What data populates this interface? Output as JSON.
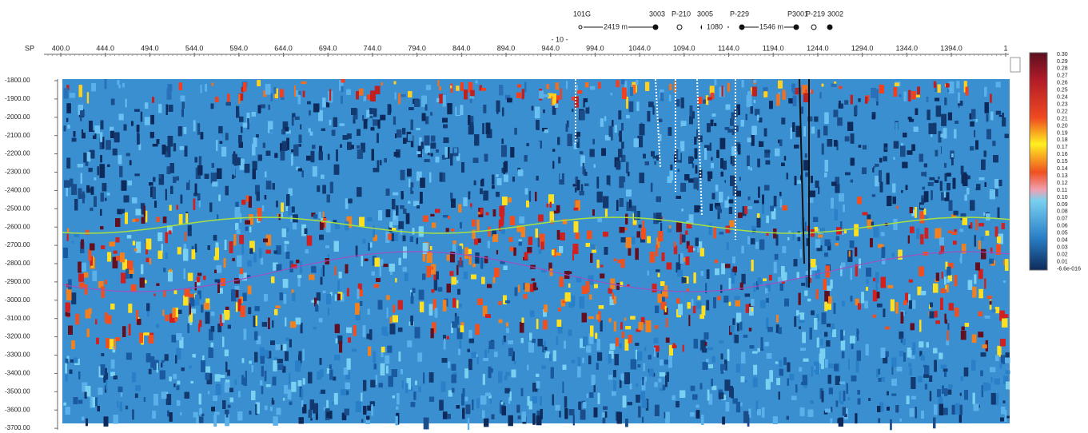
{
  "axis": {
    "x_label": "SP",
    "x_ticks": [
      "400.0",
      "444.0",
      "494.0",
      "544.0",
      "594.0",
      "644.0",
      "694.0",
      "744.0",
      "794.0",
      "844.0",
      "894.0",
      "944.0",
      "994.0",
      "1044.0",
      "1094.0",
      "1144.0",
      "1194.0",
      "1244.0",
      "1294.0",
      "1344.0",
      "1394.0",
      "1"
    ],
    "marker": "- 10 -",
    "y_ticks": [
      "-1800.00",
      "-1900.00",
      "-2000.00",
      "-2100.00",
      "-2200.00",
      "-2300.00",
      "-2400.00",
      "-2500.00",
      "-2600.00",
      "-2700.00",
      "-2800.00",
      "-2900.00",
      "-3000.00",
      "-3100.00",
      "-3200.00",
      "-3300.00",
      "-3400.00",
      "-3500.00",
      "-3600.00",
      "-3700.00"
    ]
  },
  "colorbar": {
    "labels": [
      "0.30",
      "0.29",
      "0.28",
      "0.27",
      "0.26",
      "0.25",
      "0.24",
      "0.23",
      "0.22",
      "0.21",
      "0.20",
      "0.19",
      "0.18",
      "0.17",
      "0.16",
      "0.15",
      "0.14",
      "0.13",
      "0.12",
      "0.11",
      "0.10",
      "0.09",
      "0.08",
      "0.07",
      "0.06",
      "0.05",
      "0.04",
      "0.03",
      "0.02",
      "0.01",
      "-6.6e-016"
    ]
  },
  "wells": [
    "101G",
    "3003",
    "P-210",
    "3005",
    "P-229",
    "P3001",
    "P-219",
    "3002"
  ],
  "distances": [
    "2419 m",
    "1080",
    "1546 m"
  ]
}
